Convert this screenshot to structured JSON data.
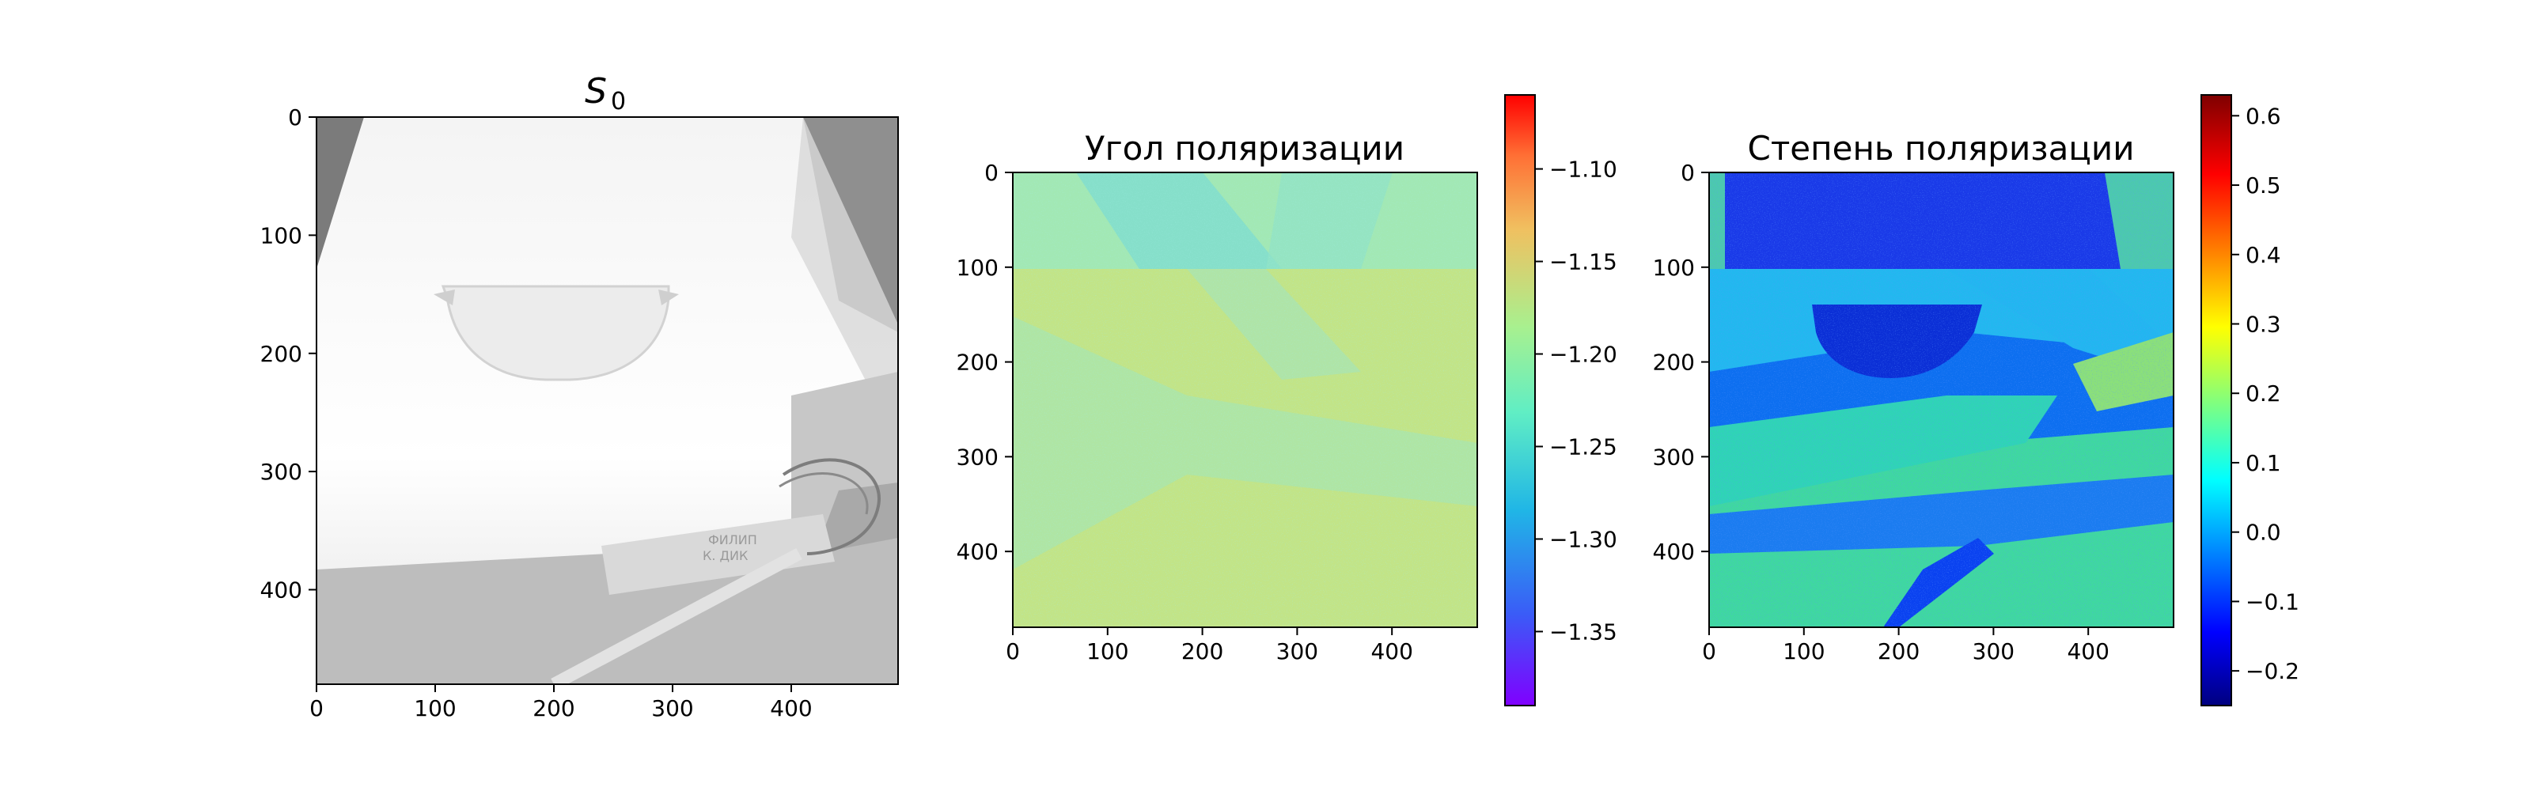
{
  "chart_data": [
    {
      "type": "heatmap",
      "title_main": "S",
      "title_sub": "0",
      "xticks": [
        "0",
        "100",
        "200",
        "300",
        "400"
      ],
      "yticks": [
        "0",
        "100",
        "200",
        "300",
        "400"
      ],
      "xlim": [
        0,
        490
      ],
      "ylim": [
        480,
        0
      ],
      "colormap": "gray"
    },
    {
      "type": "heatmap",
      "title": "Угол поляризации",
      "xticks": [
        "0",
        "100",
        "200",
        "300",
        "400"
      ],
      "yticks": [
        "0",
        "100",
        "200",
        "300",
        "400"
      ],
      "xlim": [
        0,
        490
      ],
      "ylim": [
        480,
        0
      ],
      "colormap": "rainbow",
      "colorbar": {
        "range": [
          -1.39,
          -1.06
        ],
        "ticks": [
          -1.1,
          -1.15,
          -1.2,
          -1.25,
          -1.3,
          -1.35
        ],
        "tick_labels": [
          "−1.10",
          "−1.15",
          "−1.20",
          "−1.25",
          "−1.30",
          "−1.35"
        ]
      }
    },
    {
      "type": "heatmap",
      "title": "Степень поляризации",
      "xticks": [
        "0",
        "100",
        "200",
        "300",
        "400"
      ],
      "yticks": [
        "0",
        "100",
        "200",
        "300",
        "400"
      ],
      "xlim": [
        0,
        490
      ],
      "ylim": [
        480,
        0
      ],
      "colormap": "jet",
      "colorbar": {
        "range": [
          -0.25,
          0.63
        ],
        "ticks": [
          0.6,
          0.5,
          0.4,
          0.3,
          0.2,
          0.1,
          0.0,
          -0.1,
          -0.2
        ],
        "tick_labels": [
          "0.6",
          "0.5",
          "0.4",
          "0.3",
          "0.2",
          "0.1",
          "0.0",
          "−0.1",
          "−0.2"
        ]
      }
    }
  ],
  "image_text": {
    "label_line1": "ФИЛИП",
    "label_line2": "К. ДИК"
  }
}
